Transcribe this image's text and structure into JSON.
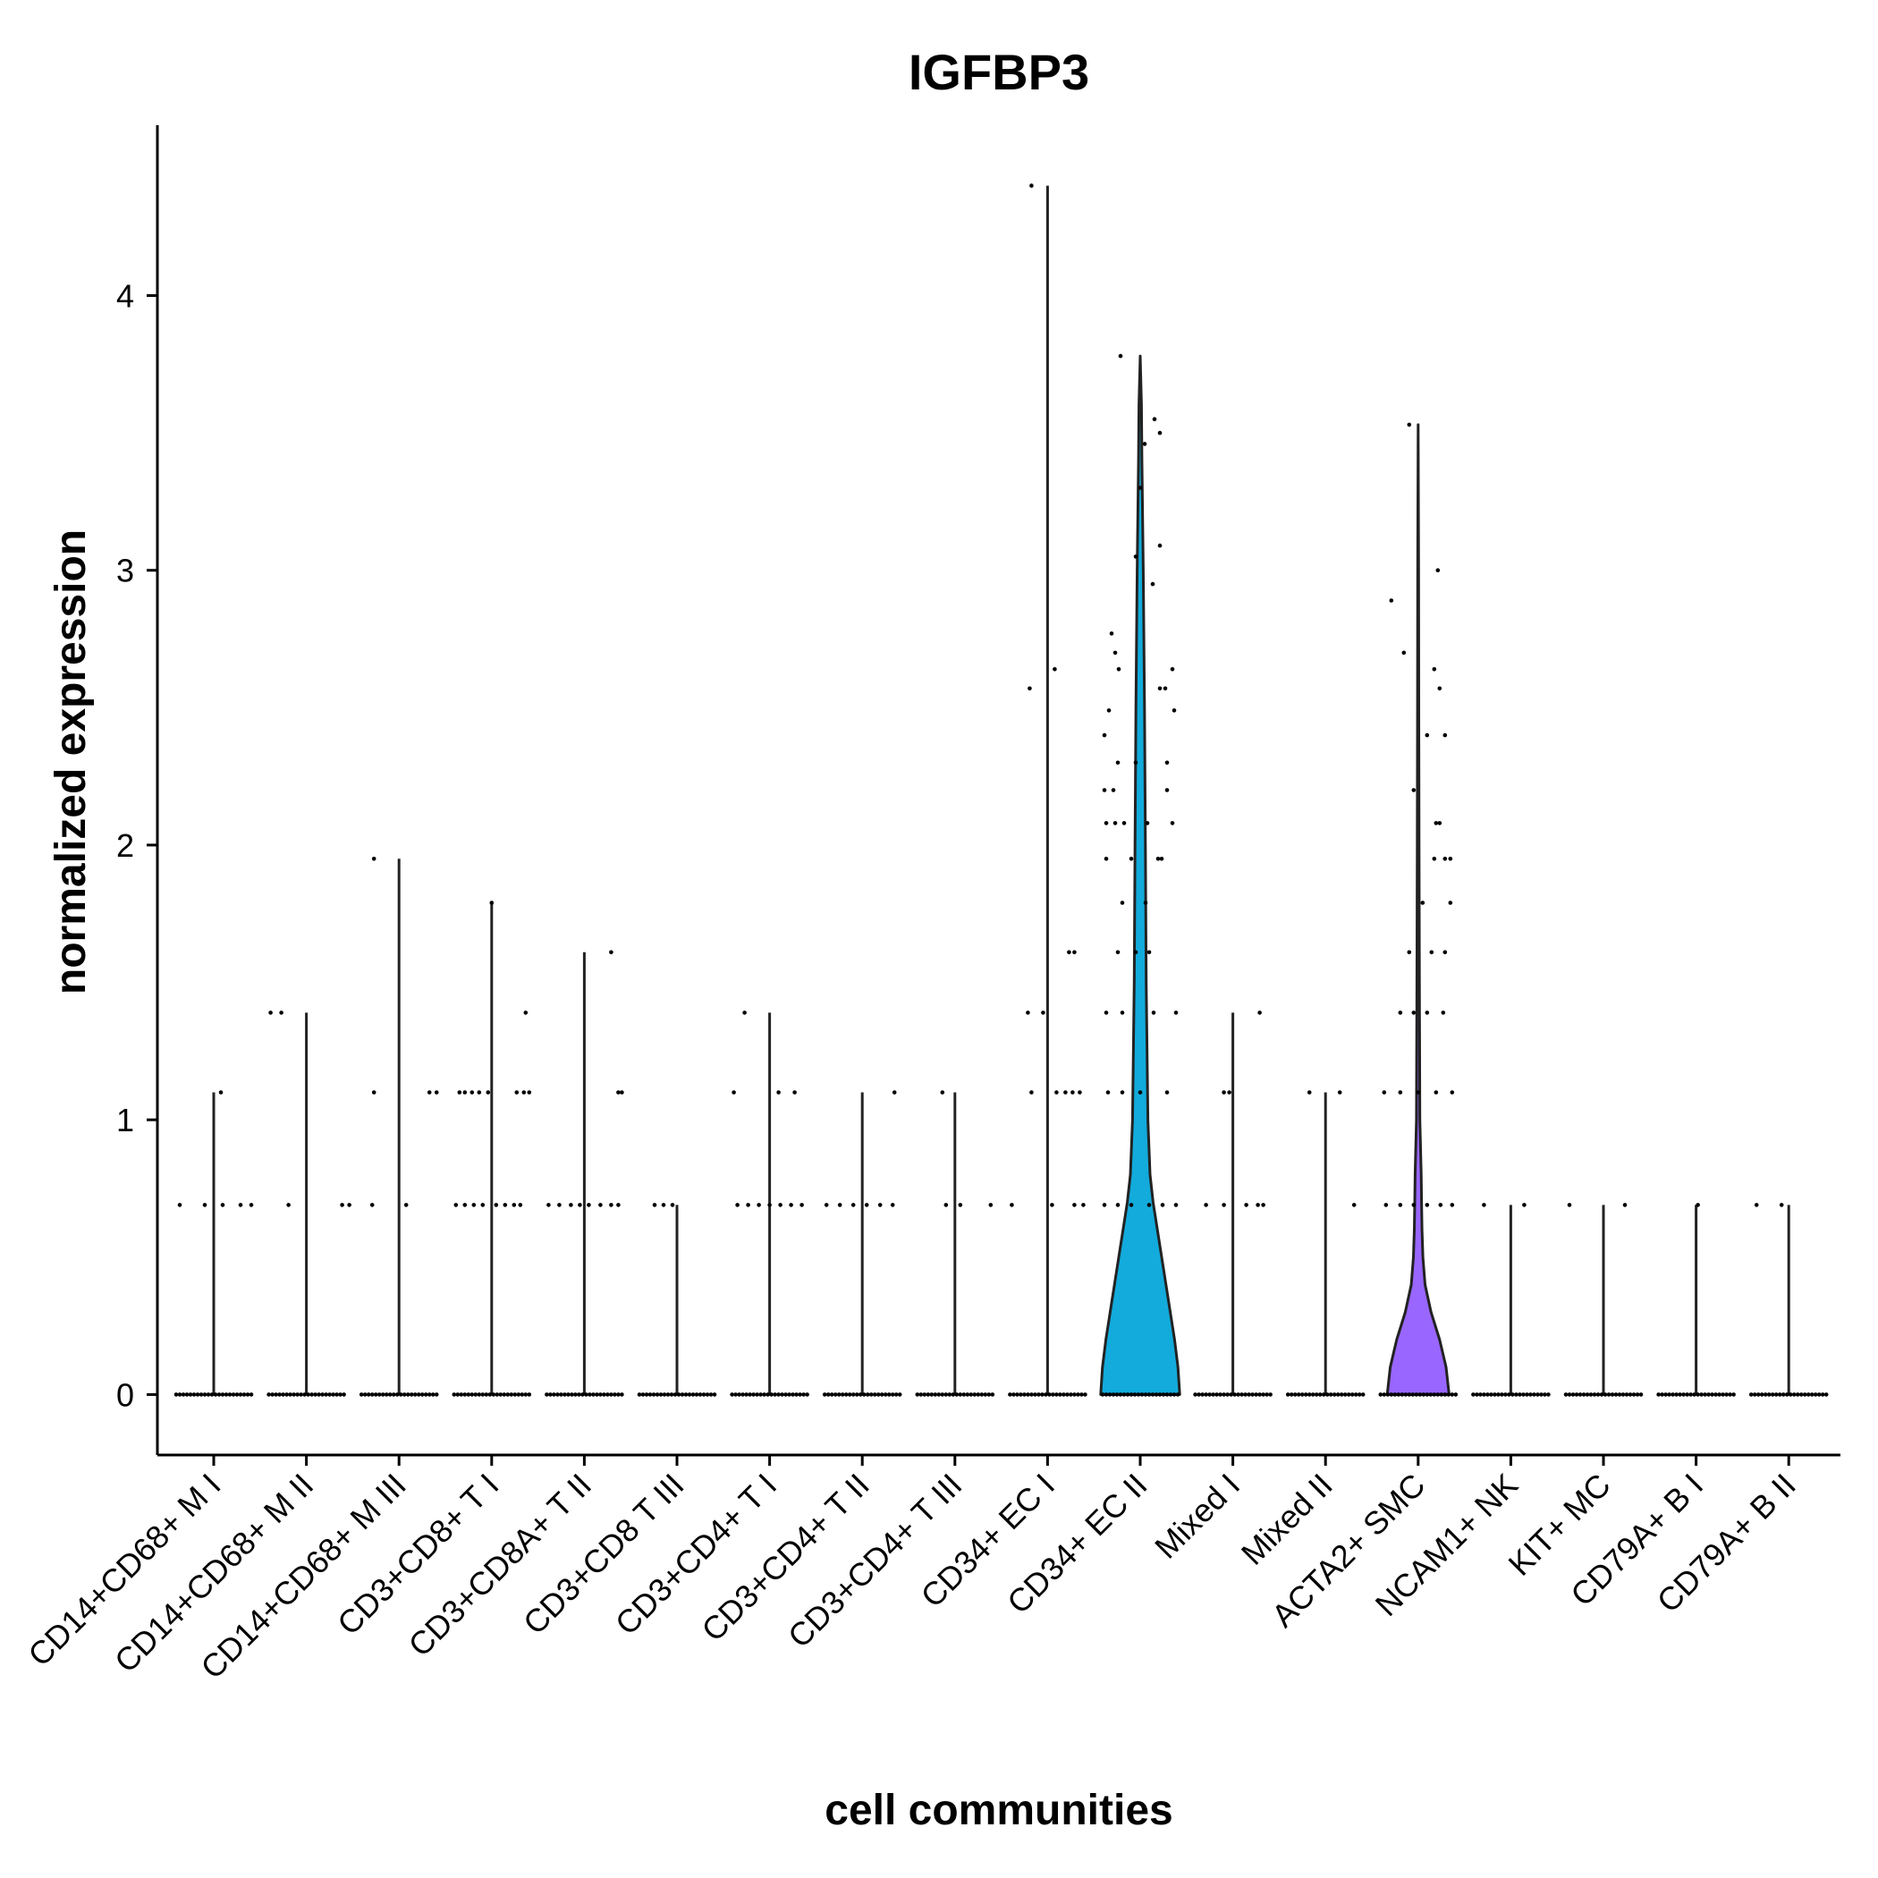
{
  "chart_data": {
    "type": "violin",
    "title": "IGFBP3",
    "xlabel": "cell communities",
    "ylabel": "normalized expression",
    "ylim": [
      -0.22,
      4.62
    ],
    "yticks": [
      0,
      1,
      2,
      3,
      4
    ],
    "grid": false,
    "legend": "none",
    "categories": [
      "CD14+CD68+ M I",
      "CD14+CD68+ M II",
      "CD14+CD68+ M III",
      "CD3+CD8+ T I",
      "CD3+CD8A+ T II",
      "CD3+CD8 T III",
      "CD3+CD4+ T I",
      "CD3+CD4+ T II",
      "CD3+CD4+ T III",
      "CD34+ EC I",
      "CD34+ EC II",
      "Mixed I",
      "Mixed II",
      "ACTA2+ SMC",
      "NCAM1+ NK",
      "KIT+ MC",
      "CD79A+ B I",
      "CD79A+ B II"
    ],
    "series": [
      {
        "max": 1.1,
        "color": "#F8766D",
        "density": [],
        "points": [
          [
            0.69,
            -0.38
          ],
          [
            0.69,
            -0.1
          ],
          [
            0.69,
            0.1
          ],
          [
            0.69,
            0.3
          ],
          [
            0.69,
            0.42
          ],
          [
            1.1,
            0.08
          ]
        ]
      },
      {
        "max": 1.39,
        "color": "#E38900",
        "density": [],
        "points": [
          [
            1.39,
            -0.4
          ],
          [
            1.39,
            -0.28
          ],
          [
            0.69,
            -0.2
          ],
          [
            0.69,
            0.4
          ],
          [
            0.69,
            0.48
          ]
        ]
      },
      {
        "max": 1.95,
        "color": "#C49A00",
        "density": [],
        "points": [
          [
            1.95,
            -0.28
          ],
          [
            1.1,
            -0.28
          ],
          [
            0.69,
            -0.3
          ],
          [
            0.69,
            0.08
          ],
          [
            1.1,
            0.34
          ],
          [
            1.1,
            0.42
          ]
        ]
      },
      {
        "max": 1.79,
        "color": "#99A800",
        "density": [],
        "points": [
          [
            1.1,
            -0.36
          ],
          [
            1.1,
            -0.3
          ],
          [
            1.1,
            -0.22
          ],
          [
            1.1,
            -0.14
          ],
          [
            1.1,
            -0.04
          ],
          [
            1.1,
            0.28
          ],
          [
            1.1,
            0.36
          ],
          [
            1.1,
            0.42
          ],
          [
            1.79,
            0.0
          ],
          [
            1.39,
            0.38
          ],
          [
            0.69,
            -0.4
          ],
          [
            0.69,
            -0.3
          ],
          [
            0.69,
            -0.2
          ],
          [
            0.69,
            -0.1
          ],
          [
            0.69,
            0.05
          ],
          [
            0.69,
            0.15
          ],
          [
            0.69,
            0.25
          ],
          [
            0.69,
            0.32
          ]
        ]
      },
      {
        "max": 1.61,
        "color": "#53B400",
        "density": [],
        "points": [
          [
            1.61,
            0.3
          ],
          [
            1.1,
            0.38
          ],
          [
            1.1,
            0.42
          ],
          [
            0.69,
            -0.4
          ],
          [
            0.69,
            -0.28
          ],
          [
            0.69,
            -0.15
          ],
          [
            0.69,
            -0.05
          ],
          [
            0.69,
            0.05
          ],
          [
            0.69,
            0.18
          ],
          [
            0.69,
            0.3
          ],
          [
            0.69,
            0.38
          ]
        ]
      },
      {
        "max": 0.69,
        "color": "#00BC56",
        "density": [],
        "points": [
          [
            0.69,
            -0.25
          ],
          [
            0.69,
            -0.15
          ],
          [
            0.69,
            -0.05
          ]
        ]
      },
      {
        "max": 1.39,
        "color": "#00C094",
        "density": [],
        "points": [
          [
            1.39,
            -0.28
          ],
          [
            1.1,
            -0.4
          ],
          [
            1.1,
            0.1
          ],
          [
            1.1,
            0.28
          ],
          [
            0.69,
            -0.36
          ],
          [
            0.69,
            -0.24
          ],
          [
            0.69,
            -0.12
          ],
          [
            0.69,
            0.0
          ],
          [
            0.69,
            0.12
          ],
          [
            0.69,
            0.24
          ],
          [
            0.69,
            0.36
          ]
        ]
      },
      {
        "max": 1.1,
        "color": "#00BFC4",
        "density": [],
        "points": [
          [
            1.1,
            0.36
          ],
          [
            0.69,
            -0.4
          ],
          [
            0.69,
            -0.25
          ],
          [
            0.69,
            -0.1
          ],
          [
            0.69,
            0.05
          ],
          [
            0.69,
            0.2
          ],
          [
            0.69,
            0.34
          ]
        ]
      },
      {
        "max": 1.1,
        "color": "#00B6EB",
        "density": [],
        "points": [
          [
            1.1,
            -0.14
          ],
          [
            0.69,
            -0.1
          ],
          [
            0.69,
            0.06
          ],
          [
            0.69,
            0.4
          ]
        ]
      },
      {
        "max": 4.4,
        "color": "#06A4FF",
        "density": [],
        "points": [
          [
            4.4,
            -0.18
          ],
          [
            2.64,
            0.08
          ],
          [
            2.57,
            -0.2
          ],
          [
            1.61,
            0.24
          ],
          [
            1.61,
            0.3
          ],
          [
            1.39,
            -0.22
          ],
          [
            1.39,
            -0.05
          ],
          [
            1.1,
            -0.18
          ],
          [
            1.1,
            0.1
          ],
          [
            1.1,
            0.2
          ],
          [
            1.1,
            0.28
          ],
          [
            1.1,
            0.36
          ],
          [
            0.69,
            -0.4
          ],
          [
            0.69,
            0.05
          ],
          [
            0.69,
            0.3
          ],
          [
            0.69,
            0.4
          ]
        ]
      },
      {
        "max": 3.78,
        "color": "#12ABDB",
        "density": [
          [
            0,
            0.92
          ],
          [
            0.1,
            0.88
          ],
          [
            0.2,
            0.8
          ],
          [
            0.3,
            0.7
          ],
          [
            0.4,
            0.6
          ],
          [
            0.5,
            0.5
          ],
          [
            0.6,
            0.4
          ],
          [
            0.7,
            0.3
          ],
          [
            0.8,
            0.23
          ],
          [
            1.0,
            0.18
          ],
          [
            1.5,
            0.14
          ],
          [
            2.0,
            0.12
          ],
          [
            2.5,
            0.1
          ],
          [
            3.0,
            0.07
          ],
          [
            3.4,
            0.04
          ],
          [
            3.6,
            0.03
          ],
          [
            3.78,
            0.0
          ]
        ],
        "points": [
          [
            3.78,
            -0.22
          ],
          [
            3.55,
            0.16
          ],
          [
            3.5,
            0.22
          ],
          [
            3.46,
            0.05
          ],
          [
            3.3,
            0.0
          ],
          [
            3.09,
            0.22
          ],
          [
            3.05,
            -0.05
          ],
          [
            2.95,
            0.14
          ],
          [
            2.77,
            -0.32
          ],
          [
            2.7,
            -0.28
          ],
          [
            2.64,
            -0.24
          ],
          [
            2.64,
            0.36
          ],
          [
            2.57,
            0.22
          ],
          [
            2.57,
            0.28
          ],
          [
            2.49,
            -0.35
          ],
          [
            2.49,
            0.38
          ],
          [
            2.4,
            -0.4
          ],
          [
            2.3,
            -0.25
          ],
          [
            2.3,
            -0.05
          ],
          [
            2.3,
            0.3
          ],
          [
            2.2,
            -0.4
          ],
          [
            2.2,
            -0.3
          ],
          [
            2.2,
            0.3
          ],
          [
            2.08,
            -0.38
          ],
          [
            2.08,
            -0.28
          ],
          [
            2.08,
            -0.18
          ],
          [
            2.08,
            0.08
          ],
          [
            2.08,
            0.36
          ],
          [
            1.95,
            -0.38
          ],
          [
            1.95,
            -0.1
          ],
          [
            1.95,
            0.2
          ],
          [
            1.95,
            0.24
          ],
          [
            1.79,
            -0.2
          ],
          [
            1.79,
            0.06
          ],
          [
            1.61,
            -0.25
          ],
          [
            1.61,
            -0.05
          ],
          [
            1.61,
            0.1
          ],
          [
            1.39,
            -0.38
          ],
          [
            1.39,
            -0.2
          ],
          [
            1.39,
            0.15
          ],
          [
            1.39,
            0.4
          ],
          [
            1.1,
            -0.36
          ],
          [
            1.1,
            -0.2
          ],
          [
            1.1,
            0.0
          ],
          [
            1.1,
            0.3
          ],
          [
            0.69,
            -0.4
          ],
          [
            0.69,
            -0.25
          ],
          [
            0.69,
            -0.1
          ],
          [
            0.69,
            0.1
          ],
          [
            0.69,
            0.25
          ],
          [
            0.69,
            0.4
          ]
        ]
      },
      {
        "max": 1.39,
        "color": "#9590FF",
        "density": [],
        "points": [
          [
            1.39,
            0.3
          ],
          [
            1.1,
            -0.1
          ],
          [
            1.1,
            -0.04
          ],
          [
            0.69,
            -0.3
          ],
          [
            0.69,
            -0.1
          ],
          [
            0.69,
            0.15
          ],
          [
            0.69,
            0.28
          ],
          [
            0.69,
            0.34
          ]
        ]
      },
      {
        "max": 1.1,
        "color": "#C77CFF",
        "density": [],
        "points": [
          [
            1.1,
            -0.18
          ],
          [
            1.1,
            0.16
          ],
          [
            0.69,
            0.32
          ]
        ]
      },
      {
        "max": 3.53,
        "color": "#9966FF",
        "density": [
          [
            0,
            0.72
          ],
          [
            0.1,
            0.65
          ],
          [
            0.2,
            0.5
          ],
          [
            0.3,
            0.3
          ],
          [
            0.4,
            0.16
          ],
          [
            0.5,
            0.11
          ],
          [
            0.6,
            0.09
          ],
          [
            0.7,
            0.08
          ],
          [
            0.8,
            0.07
          ],
          [
            1.0,
            0.04
          ],
          [
            1.5,
            0.03
          ],
          [
            2.0,
            0.02
          ],
          [
            2.5,
            0.015
          ],
          [
            3.0,
            0.01
          ],
          [
            3.53,
            0.0
          ]
        ],
        "points": [
          [
            3.53,
            -0.1
          ],
          [
            3.0,
            0.22
          ],
          [
            2.89,
            -0.3
          ],
          [
            2.7,
            -0.16
          ],
          [
            2.64,
            0.18
          ],
          [
            2.57,
            0.24
          ],
          [
            2.4,
            0.1
          ],
          [
            2.4,
            0.3
          ],
          [
            2.2,
            -0.05
          ],
          [
            2.08,
            0.2
          ],
          [
            2.08,
            0.24
          ],
          [
            1.95,
            0.18
          ],
          [
            1.95,
            0.3
          ],
          [
            1.95,
            0.36
          ],
          [
            1.79,
            0.05
          ],
          [
            1.79,
            0.36
          ],
          [
            1.61,
            -0.1
          ],
          [
            1.61,
            0.15
          ],
          [
            1.61,
            0.3
          ],
          [
            1.39,
            -0.2
          ],
          [
            1.39,
            -0.05
          ],
          [
            1.39,
            0.1
          ],
          [
            1.39,
            0.28
          ],
          [
            1.1,
            -0.38
          ],
          [
            1.1,
            -0.2
          ],
          [
            1.1,
            0.0
          ],
          [
            1.1,
            0.2
          ],
          [
            1.1,
            0.38
          ],
          [
            0.69,
            -0.36
          ],
          [
            0.69,
            -0.2
          ],
          [
            0.69,
            -0.05
          ],
          [
            0.69,
            0.1
          ],
          [
            0.69,
            0.25
          ],
          [
            0.69,
            0.38
          ]
        ]
      },
      {
        "max": 0.69,
        "color": "#E76BF3",
        "density": [],
        "points": [
          [
            0.69,
            -0.3
          ],
          [
            0.69,
            0.15
          ]
        ]
      },
      {
        "max": 0.69,
        "color": "#FA62DB",
        "density": [],
        "points": [
          [
            0.69,
            -0.38
          ],
          [
            0.69,
            0.24
          ]
        ]
      },
      {
        "max": 0.69,
        "color": "#FF62BC",
        "density": [],
        "points": [
          [
            0.69,
            0.02
          ]
        ]
      },
      {
        "max": 0.69,
        "color": "#FF6C91",
        "density": [],
        "points": [
          [
            0.69,
            -0.36
          ],
          [
            0.69,
            -0.08
          ]
        ]
      }
    ]
  }
}
